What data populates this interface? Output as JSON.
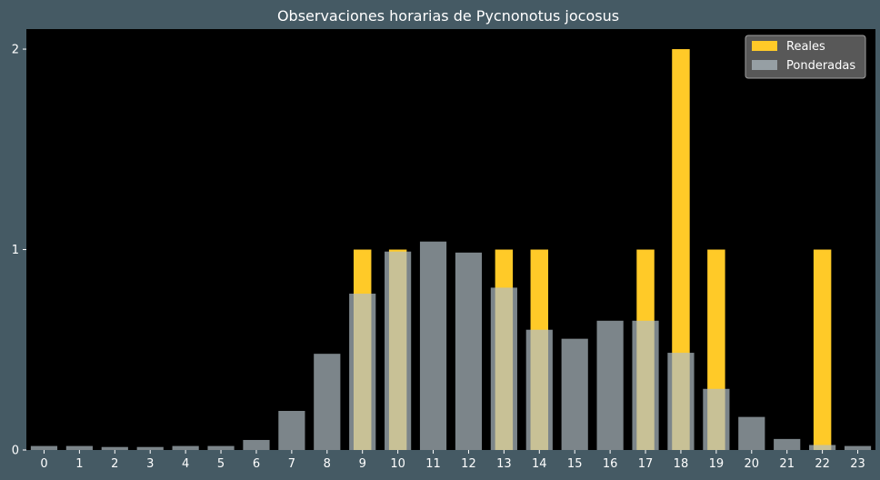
{
  "chart_data": {
    "type": "bar",
    "title": "Observaciones horarias de Pycnonotus jocosus",
    "xlabel": "",
    "ylabel": "",
    "categories": [
      "0",
      "1",
      "2",
      "3",
      "4",
      "5",
      "6",
      "7",
      "8",
      "9",
      "10",
      "11",
      "12",
      "13",
      "14",
      "15",
      "16",
      "17",
      "18",
      "19",
      "20",
      "21",
      "22",
      "23"
    ],
    "series": [
      {
        "name": "Reales",
        "color": "#ffca28",
        "values": [
          0,
          0,
          0,
          0,
          0,
          0,
          0,
          0,
          0,
          1,
          1,
          0,
          0,
          1,
          1,
          0,
          0,
          1,
          2,
          1,
          0,
          0,
          1,
          0
        ]
      },
      {
        "name": "Ponderadas",
        "color": "#b0bec5",
        "opacity": 0.7,
        "values": [
          0.02,
          0.02,
          0.015,
          0.015,
          0.02,
          0.02,
          0.05,
          0.195,
          0.48,
          0.78,
          0.99,
          1.04,
          0.985,
          0.81,
          0.6,
          0.555,
          0.645,
          0.645,
          0.485,
          0.305,
          0.165,
          0.055,
          0.025,
          0.02
        ]
      }
    ],
    "ylim": [
      0,
      2.1
    ],
    "yticks": [
      "0",
      "1",
      "2"
    ],
    "grid": false,
    "legend_position": "top-right",
    "plot_background": "#000000",
    "figure_background": "#455a64"
  }
}
